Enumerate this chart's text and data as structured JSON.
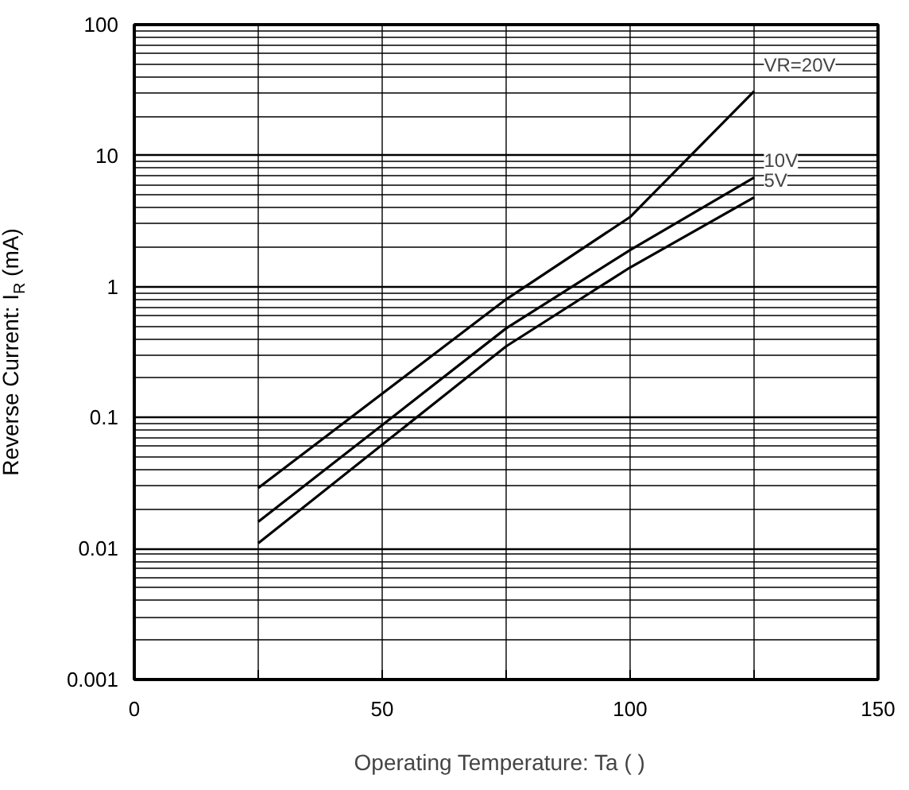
{
  "chart_data": {
    "type": "line",
    "xlabel": "Operating Temperature: Ta (   )",
    "ylabel": "Reverse Current: I$_{R}$ (mA)",
    "x": [
      25,
      75,
      100,
      125
    ],
    "series": [
      {
        "name": "VR=20V",
        "color": "#000000",
        "values": [
          0.029,
          0.8,
          3.4,
          31
        ]
      },
      {
        "name": "10V",
        "color": "#000000",
        "values": [
          0.016,
          0.48,
          1.9,
          6.8
        ]
      },
      {
        "name": "5V",
        "color": "#000000",
        "values": [
          0.011,
          0.35,
          1.4,
          4.8
        ]
      }
    ],
    "log": "y",
    "xlim": [
      0,
      150
    ],
    "ylim": [
      0.001,
      100
    ],
    "xticks": [
      0,
      {
        "value": 25,
        "label": null
      },
      50,
      {
        "value": 75,
        "label": null
      },
      100,
      {
        "value": 125,
        "label": null
      },
      150
    ],
    "yticks": [
      0.001,
      0.01,
      0.1,
      1,
      10,
      100
    ],
    "grid": true,
    "marker": "none",
    "line_style": "solid"
  }
}
